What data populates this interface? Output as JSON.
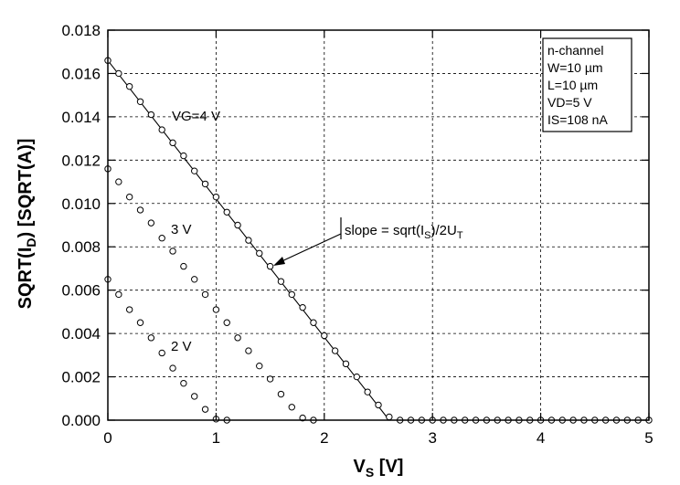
{
  "chart_data": {
    "type": "scatter",
    "xlabel": {
      "main": "V",
      "sub": "S",
      "rest": " [V]"
    },
    "ylabel": {
      "pre": "SQRT(I",
      "sub": "D",
      "post": ") [SQRT(A)]"
    },
    "xlim": [
      0,
      5
    ],
    "ylim": [
      0,
      0.018
    ],
    "xticks": [
      "0",
      "1",
      "2",
      "3",
      "4",
      "5"
    ],
    "yticks": [
      "0.000",
      "0.002",
      "0.004",
      "0.006",
      "0.008",
      "0.010",
      "0.012",
      "0.014",
      "0.016",
      "0.018"
    ],
    "grid": true,
    "legend_box": {
      "position": "top-right",
      "lines": [
        "n-channel",
        "W=10 µm",
        "L=10 µm",
        "VD=5 V",
        "IS=108 nA"
      ]
    },
    "annotations": {
      "vg4": "VG=4 V",
      "vg3": "3 V",
      "vg2": "2 V",
      "slope": {
        "pre": "slope = sqrt(I",
        "sub1": "S",
        "mid": ")/2U",
        "sub2": "T"
      }
    },
    "fit_line": {
      "x": [
        0,
        2.6
      ],
      "y": [
        0.0166,
        0
      ]
    },
    "series": [
      {
        "x": [
          0,
          0.1,
          0.2,
          0.3,
          0.4,
          0.5,
          0.6,
          0.7,
          0.8,
          0.9,
          1.0,
          1.1,
          1.2,
          1.3,
          1.4,
          1.5,
          1.6,
          1.7,
          1.8,
          1.9,
          2.0,
          2.1,
          2.2,
          2.3,
          2.4,
          2.5,
          2.6,
          2.7,
          2.8,
          2.9,
          3.0,
          3.1,
          3.2,
          3.3,
          3.4,
          3.5,
          3.6,
          3.7,
          3.8,
          3.9,
          4.0,
          4.1,
          4.2,
          4.3,
          4.4,
          4.5,
          4.6,
          4.7,
          4.8,
          4.9,
          5.0
        ],
        "values": [
          0.0166,
          0.016,
          0.0154,
          0.0147,
          0.0141,
          0.0134,
          0.0128,
          0.0122,
          0.0115,
          0.0109,
          0.0103,
          0.0096,
          0.009,
          0.0083,
          0.0077,
          0.0071,
          0.0064,
          0.0058,
          0.0052,
          0.0045,
          0.0039,
          0.0032,
          0.0026,
          0.002,
          0.0013,
          0.0007,
          0.00015,
          0,
          0,
          0,
          0,
          0,
          0,
          0,
          0,
          0,
          0,
          0,
          0,
          0,
          0,
          0,
          0,
          0,
          0,
          0,
          0,
          0,
          0,
          0,
          0
        ]
      },
      {
        "x": [
          0,
          0.1,
          0.2,
          0.3,
          0.4,
          0.5,
          0.6,
          0.7,
          0.8,
          0.9,
          1.0,
          1.1,
          1.2,
          1.3,
          1.4,
          1.5,
          1.6,
          1.7,
          1.8,
          1.9
        ],
        "values": [
          0.0116,
          0.011,
          0.0103,
          0.0097,
          0.0091,
          0.0084,
          0.0078,
          0.0071,
          0.0065,
          0.0058,
          0.0051,
          0.0045,
          0.0038,
          0.0032,
          0.0025,
          0.0019,
          0.0012,
          0.0006,
          0.0001,
          0
        ]
      },
      {
        "x": [
          0,
          0.1,
          0.2,
          0.3,
          0.4,
          0.5,
          0.6,
          0.7,
          0.8,
          0.9,
          1.0,
          1.1
        ],
        "values": [
          0.0065,
          0.0058,
          0.0051,
          0.0045,
          0.0038,
          0.0031,
          0.0024,
          0.0017,
          0.0011,
          0.0005,
          5e-05,
          0
        ]
      }
    ]
  }
}
